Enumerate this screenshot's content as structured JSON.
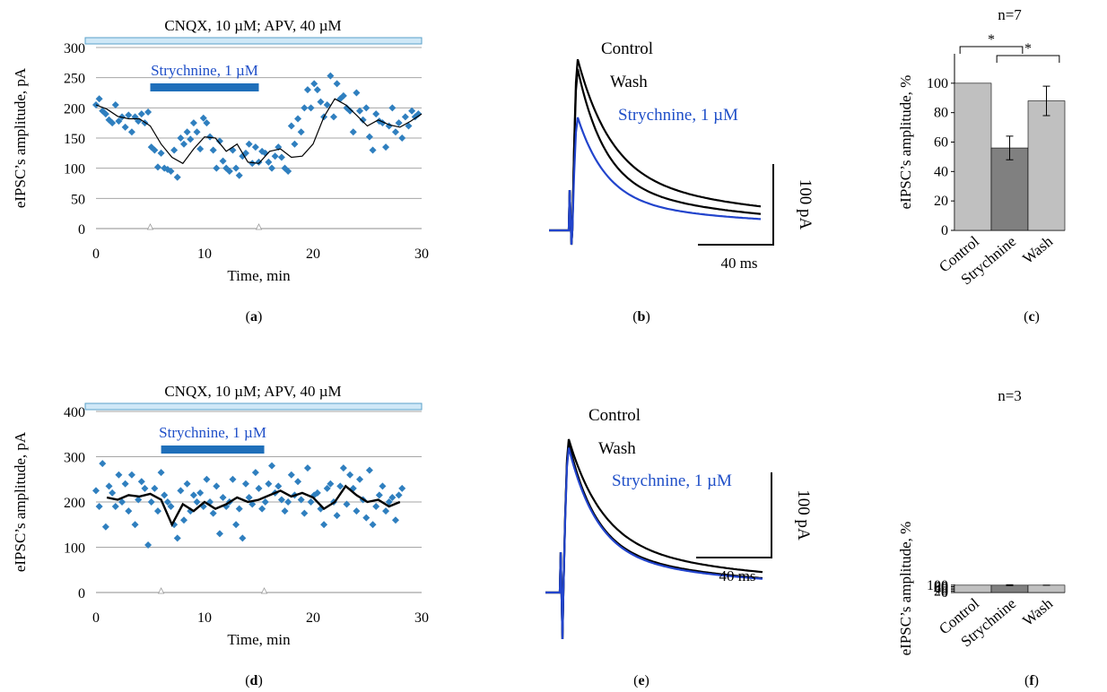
{
  "colors": {
    "points": "#2f7fbf",
    "drug_bar": "#1f6fba",
    "drug_text": "#1f4fc8",
    "glut_bar_fill": "#cfe8f7",
    "glut_bar_stroke": "#5aa0c8",
    "strych_trace": "#2244cc",
    "bar_light": "#c0c0c0",
    "bar_dark": "#808080",
    "grid": "#a6a6a6"
  },
  "panels": {
    "a": {
      "label_open": "(",
      "label_letter": "a",
      "label_close": ")"
    },
    "b": {
      "label_open": "(",
      "label_letter": "b",
      "label_close": ")"
    },
    "c": {
      "label_open": "(",
      "label_letter": "c",
      "label_close": ")"
    },
    "d": {
      "label_open": "(",
      "label_letter": "d",
      "label_close": ")"
    },
    "e": {
      "label_open": "(",
      "label_letter": "e",
      "label_close": ")"
    },
    "f": {
      "label_open": "(",
      "label_letter": "f",
      "label_close": ")"
    }
  },
  "chart_data": [
    {
      "id": "a",
      "type": "scatter",
      "top_label": "CNQX, 10 µM; APV, 40 µM",
      "drug_label": "Strychnine, 1 µM",
      "drug_range_min": [
        5,
        15
      ],
      "xlabel": "Time, min",
      "ylabel": "eIPSC’s amplitude, pA",
      "xlim": [
        0,
        30
      ],
      "ylim": [
        0,
        300
      ],
      "xticks": [
        0,
        10,
        20,
        30
      ],
      "yticks": [
        0,
        50,
        100,
        150,
        200,
        250,
        300
      ],
      "series": [
        {
          "kind": "points",
          "x": [
            0.0,
            0.3,
            0.6,
            0.9,
            1.2,
            1.5,
            1.8,
            2.1,
            2.4,
            2.7,
            3.0,
            3.3,
            3.6,
            3.9,
            4.2,
            4.5,
            4.8,
            5.1,
            5.4,
            5.7,
            6.0,
            6.3,
            6.6,
            6.9,
            7.2,
            7.5,
            7.8,
            8.1,
            8.4,
            8.7,
            9.0,
            9.3,
            9.6,
            9.9,
            10.2,
            10.5,
            10.8,
            11.1,
            11.4,
            11.7,
            12.0,
            12.3,
            12.6,
            12.9,
            13.2,
            13.5,
            13.8,
            14.1,
            14.4,
            14.7,
            15.0,
            15.3,
            15.6,
            15.9,
            16.2,
            16.5,
            16.8,
            17.1,
            17.4,
            17.7,
            18.0,
            18.3,
            18.6,
            18.9,
            19.2,
            19.5,
            19.8,
            20.1,
            20.4,
            20.7,
            21.0,
            21.3,
            21.6,
            21.9,
            22.2,
            22.5,
            22.8,
            23.1,
            23.4,
            23.7,
            24.0,
            24.3,
            24.6,
            24.9,
            25.2,
            25.5,
            25.8,
            26.1,
            26.4,
            26.7,
            27.0,
            27.3,
            27.6,
            27.9,
            28.2,
            28.5,
            28.8,
            29.1,
            29.4,
            29.7
          ],
          "y": [
            205,
            215,
            195,
            190,
            180,
            175,
            205,
            178,
            185,
            168,
            188,
            160,
            185,
            178,
            190,
            175,
            193,
            135,
            130,
            102,
            125,
            100,
            98,
            95,
            130,
            85,
            150,
            140,
            160,
            148,
            175,
            160,
            132,
            183,
            175,
            152,
            130,
            100,
            145,
            112,
            100,
            95,
            130,
            100,
            88,
            120,
            125,
            140,
            108,
            135,
            110,
            128,
            125,
            110,
            100,
            120,
            135,
            118,
            100,
            95,
            170,
            140,
            182,
            160,
            200,
            230,
            200,
            240,
            230,
            210,
            185,
            205,
            253,
            185,
            240,
            215,
            220,
            200,
            195,
            160,
            225,
            195,
            180,
            200,
            152,
            130,
            190,
            178,
            175,
            135,
            170,
            200,
            160,
            175,
            150,
            185,
            170,
            195,
            185,
            190
          ]
        },
        {
          "kind": "moving_average",
          "x": [
            0,
            1,
            2,
            3,
            4,
            5,
            6,
            7,
            8,
            9,
            10,
            11,
            12,
            13,
            14,
            15,
            16,
            17,
            18,
            19,
            20,
            21,
            22,
            23,
            24,
            25,
            26,
            27,
            28,
            29,
            30
          ],
          "y": [
            205,
            198,
            186,
            182,
            182,
            170,
            140,
            118,
            108,
            132,
            152,
            150,
            128,
            140,
            110,
            108,
            128,
            132,
            118,
            120,
            140,
            185,
            215,
            205,
            188,
            170,
            180,
            172,
            168,
            178,
            190
          ]
        }
      ]
    },
    {
      "id": "b",
      "type": "line",
      "traces": [
        {
          "name": "Control",
          "peak_pA": 212,
          "color": "#000000"
        },
        {
          "name": "Wash",
          "peak_pA": 200,
          "color": "#000000"
        },
        {
          "name": "Strychnine, 1 µM",
          "peak_pA": 140,
          "color": "#2244cc"
        }
      ],
      "scale_y_label": "100 pA",
      "scale_x_label": "40 ms"
    },
    {
      "id": "c",
      "type": "bar",
      "title": "n=7",
      "categories": [
        "Control",
        "Strychnine",
        "Wash"
      ],
      "values": [
        100,
        56,
        88
      ],
      "errors": [
        0,
        8,
        10
      ],
      "colors": [
        "#c0c0c0",
        "#808080",
        "#c0c0c0"
      ],
      "ylabel": "eIPSC’s amplitude, %",
      "ylim": [
        0,
        120
      ],
      "yticks": [
        0,
        20,
        40,
        60,
        80,
        100
      ],
      "significance": [
        {
          "from": 0,
          "to": 1,
          "label": "*"
        },
        {
          "from": 1,
          "to": 2,
          "label": "*"
        }
      ]
    },
    {
      "id": "d",
      "type": "scatter",
      "top_label": "CNQX, 10 µM; APV, 40 µM",
      "drug_label": "Strychnine, 1 µM",
      "drug_range_min": [
        6,
        15.5
      ],
      "xlabel": "Time, min",
      "ylabel": "eIPSC’s amplitude, pA",
      "xlim": [
        0,
        30
      ],
      "ylim": [
        0,
        400
      ],
      "xticks": [
        0,
        10,
        20,
        30
      ],
      "yticks": [
        0,
        100,
        200,
        300,
        400
      ],
      "series": [
        {
          "kind": "points",
          "x": [
            0.0,
            0.3,
            0.6,
            0.9,
            1.2,
            1.5,
            1.8,
            2.1,
            2.4,
            2.7,
            3.0,
            3.3,
            3.6,
            3.9,
            4.2,
            4.5,
            4.8,
            5.1,
            5.4,
            5.7,
            6.0,
            6.3,
            6.6,
            6.9,
            7.2,
            7.5,
            7.8,
            8.1,
            8.4,
            8.7,
            9.0,
            9.3,
            9.6,
            9.9,
            10.2,
            10.5,
            10.8,
            11.1,
            11.4,
            11.7,
            12.0,
            12.3,
            12.6,
            12.9,
            13.2,
            13.5,
            13.8,
            14.1,
            14.4,
            14.7,
            15.0,
            15.3,
            15.6,
            15.9,
            16.2,
            16.5,
            16.8,
            17.1,
            17.4,
            17.7,
            18.0,
            18.3,
            18.6,
            18.9,
            19.2,
            19.5,
            19.8,
            20.1,
            20.4,
            20.7,
            21.0,
            21.3,
            21.6,
            21.9,
            22.2,
            22.5,
            22.8,
            23.1,
            23.4,
            23.7,
            24.0,
            24.3,
            24.6,
            24.9,
            25.2,
            25.5,
            25.8,
            26.1,
            26.4,
            26.7,
            27.0,
            27.3,
            27.6,
            27.9,
            28.2
          ],
          "y": [
            225,
            190,
            285,
            145,
            235,
            220,
            190,
            260,
            200,
            240,
            180,
            260,
            150,
            205,
            245,
            230,
            105,
            200,
            230,
            180,
            265,
            215,
            200,
            190,
            150,
            120,
            225,
            160,
            240,
            180,
            215,
            200,
            220,
            190,
            250,
            200,
            175,
            235,
            130,
            210,
            190,
            200,
            250,
            150,
            185,
            120,
            240,
            210,
            195,
            265,
            230,
            185,
            200,
            240,
            280,
            220,
            235,
            205,
            180,
            200,
            260,
            215,
            245,
            205,
            175,
            275,
            200,
            215,
            220,
            185,
            150,
            230,
            240,
            200,
            170,
            235,
            275,
            195,
            260,
            230,
            180,
            250,
            205,
            165,
            270,
            150,
            190,
            215,
            235,
            180,
            200,
            210,
            160,
            215,
            230
          ]
        },
        {
          "kind": "moving_average",
          "x": [
            1,
            2,
            3,
            4,
            5,
            6,
            7,
            8,
            9,
            10,
            11,
            12,
            13,
            14,
            15,
            16,
            17,
            18,
            19,
            20,
            21,
            22,
            23,
            24,
            25,
            26,
            27,
            28
          ],
          "y": [
            210,
            205,
            215,
            212,
            218,
            205,
            150,
            195,
            180,
            200,
            185,
            195,
            210,
            200,
            205,
            215,
            225,
            212,
            220,
            210,
            185,
            200,
            235,
            215,
            200,
            205,
            190,
            200
          ]
        }
      ]
    },
    {
      "id": "e",
      "type": "line",
      "traces": [
        {
          "name": "Control",
          "peak_pA": 180,
          "color": "#000000"
        },
        {
          "name": "Wash",
          "peak_pA": 176,
          "color": "#000000"
        },
        {
          "name": "Strychnine, 1 µM",
          "peak_pA": 170,
          "color": "#2244cc"
        }
      ],
      "scale_y_label": "100 pA",
      "scale_x_label": "40 ms"
    },
    {
      "id": "f",
      "type": "bar",
      "title": "n=3",
      "categories": [
        "Control",
        "Strychnine",
        "Wash"
      ],
      "values": [
        100,
        100,
        100
      ],
      "errors": [
        0,
        5,
        0.7
      ],
      "colors": [
        "#c0c0c0",
        "#808080",
        "#c0c0c0"
      ],
      "ylabel": "eIPSC’s amplitude, %",
      "ylim": [
        0,
        110
      ],
      "yticks": [
        0,
        20,
        40,
        60,
        80,
        100
      ],
      "significance": []
    }
  ]
}
